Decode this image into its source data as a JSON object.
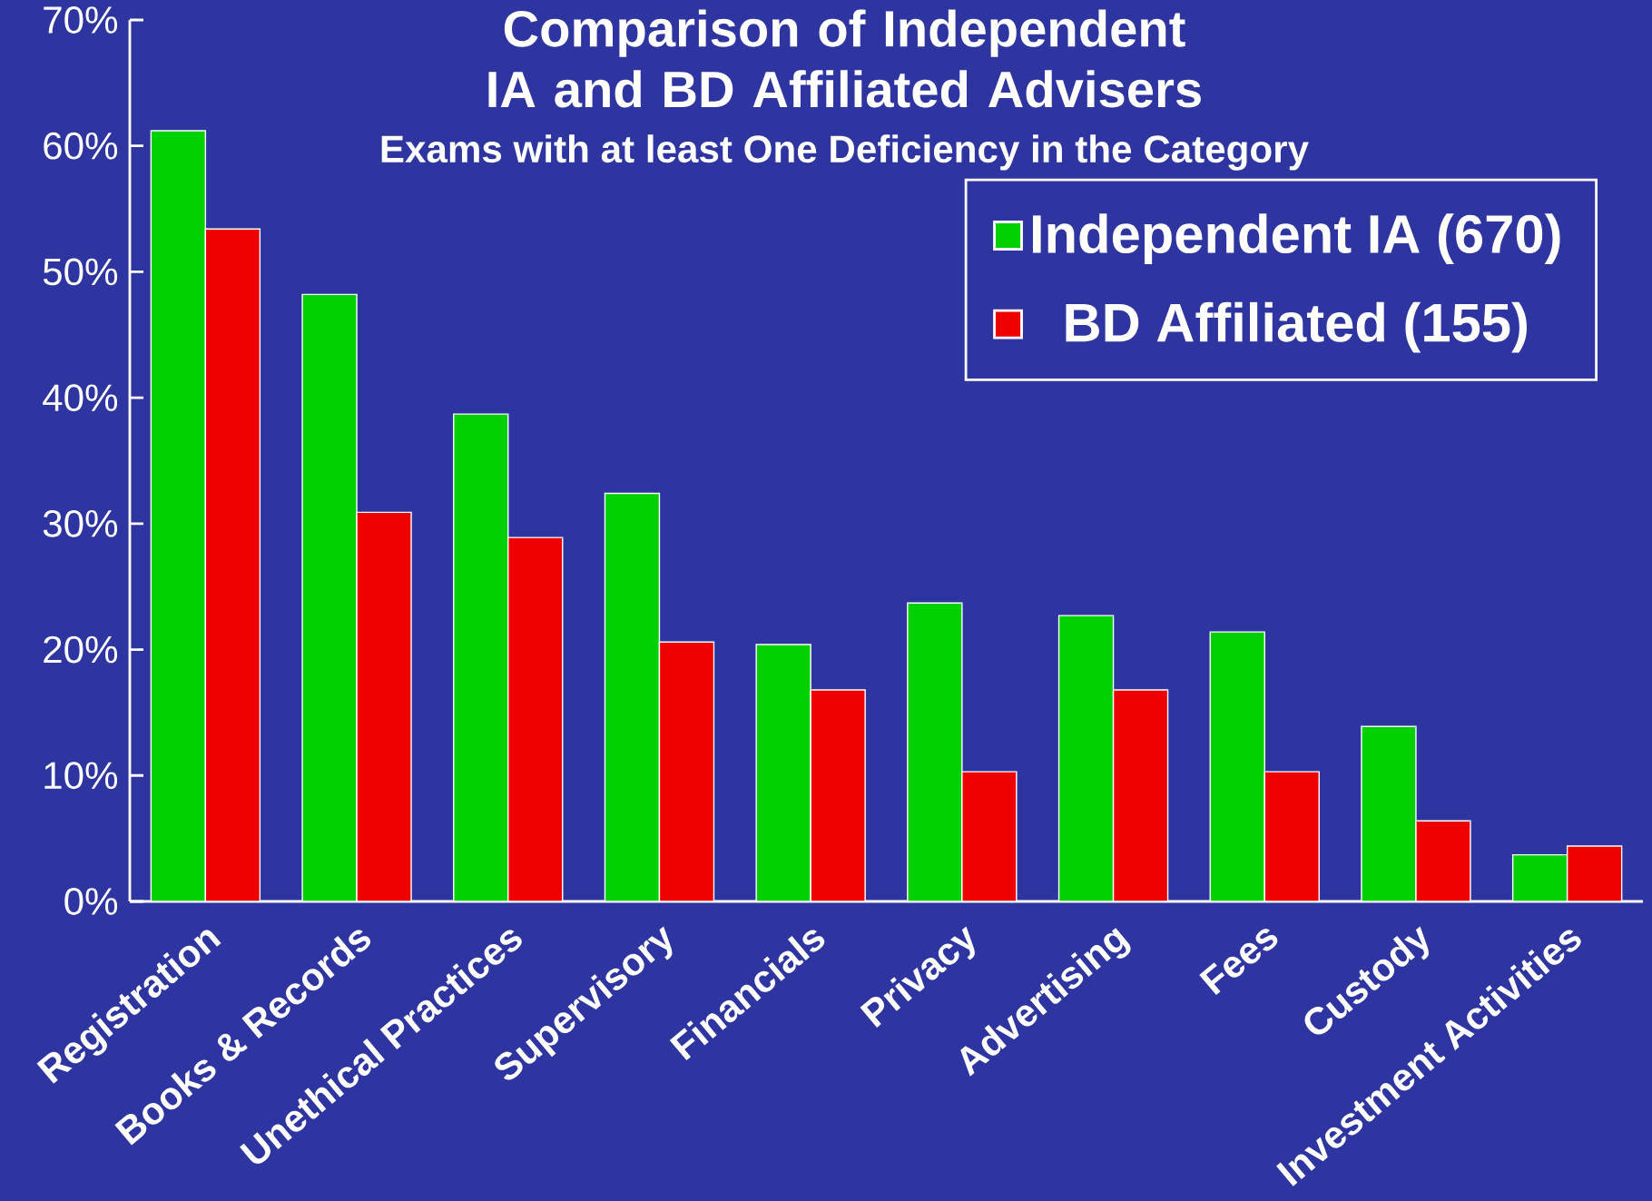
{
  "chart_data": {
    "type": "bar",
    "title": "Comparison of Independent IA and BD Affiliated Advisers",
    "subtitle": "Exams with at least One Deficiency in the Category",
    "categories": [
      "Registration",
      "Books & Records",
      "Unethical Practices",
      "Supervisory",
      "Financials",
      "Privacy",
      "Advertising",
      "Fees",
      "Custody",
      "Investment Activities"
    ],
    "series": [
      {
        "name": "Independent IA (670)",
        "color": "#00d000",
        "values": [
          61.2,
          48.2,
          38.7,
          32.4,
          20.4,
          23.7,
          22.7,
          21.4,
          13.9,
          3.7
        ]
      },
      {
        "name": "BD Affiliated (155)",
        "color": "#ee0000",
        "values": [
          53.4,
          30.9,
          28.9,
          20.6,
          16.8,
          10.3,
          16.8,
          10.3,
          6.4,
          4.4
        ]
      }
    ],
    "ylim": [
      0,
      70
    ],
    "yticks": [
      {
        "value": 0,
        "label": "0%"
      },
      {
        "value": 10,
        "label": "10%"
      },
      {
        "value": 20,
        "label": "20%"
      },
      {
        "value": 30,
        "label": "30%"
      },
      {
        "value": 40,
        "label": "40%"
      },
      {
        "value": 50,
        "label": "50%"
      },
      {
        "value": 60,
        "label": "60%"
      },
      {
        "value": 70,
        "label": "70%"
      }
    ],
    "legend": "top right"
  }
}
